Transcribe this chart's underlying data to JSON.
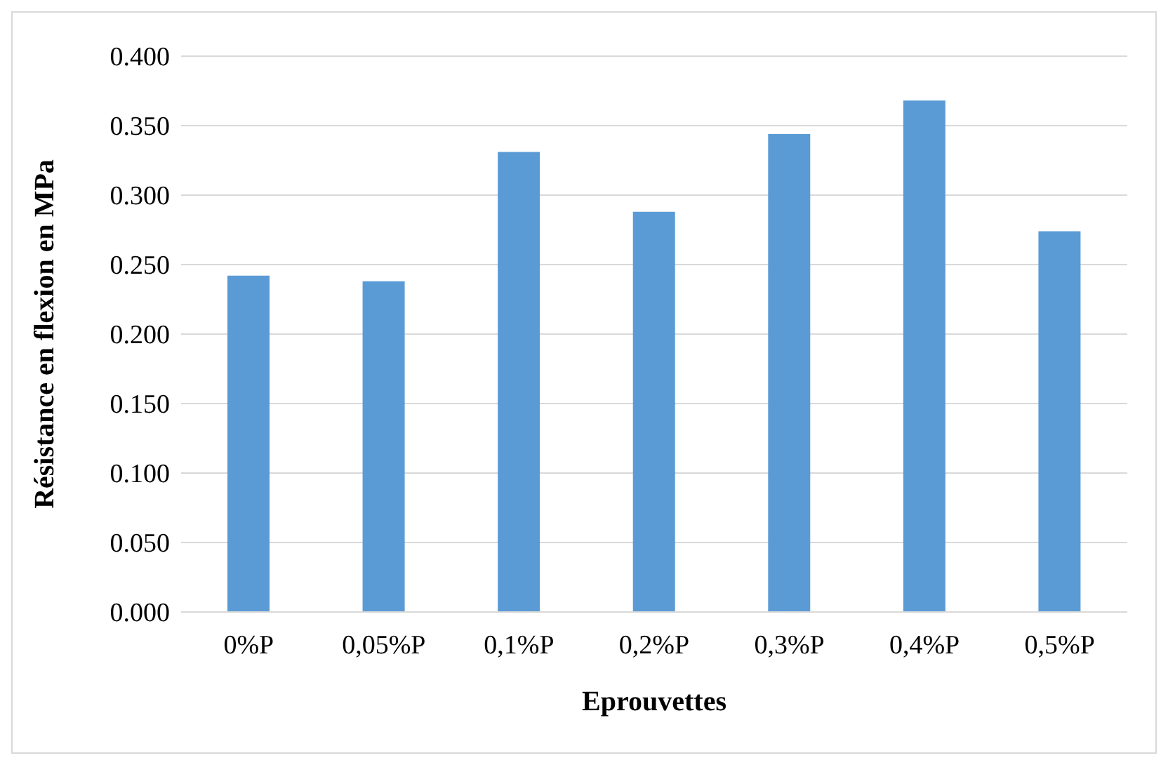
{
  "chart_data": {
    "type": "bar",
    "xlabel": "Eprouvettes",
    "ylabel": "Résistance en flexion en MPa",
    "categories": [
      "0%P",
      "0,05%P",
      "0,1%P",
      "0,2%P",
      "0,3%P",
      "0,4%P",
      "0,5%P"
    ],
    "values": [
      0.242,
      0.238,
      0.331,
      0.288,
      0.344,
      0.368,
      0.274
    ],
    "color": "#5b9bd5",
    "ylim": [
      0,
      0.4
    ],
    "yticks": [
      {
        "value": 0,
        "label": "0.000"
      },
      {
        "value": 0.05,
        "label": "0.050"
      },
      {
        "value": 0.1,
        "label": "0.100"
      },
      {
        "value": 0.15,
        "label": "0.150"
      },
      {
        "value": 0.2,
        "label": "0.200"
      },
      {
        "value": 0.25,
        "label": "0.250"
      },
      {
        "value": 0.3,
        "label": "0.300"
      },
      {
        "value": 0.35,
        "label": "0.350"
      },
      {
        "value": 0.4,
        "label": "0.400"
      }
    ],
    "grid": "y"
  }
}
